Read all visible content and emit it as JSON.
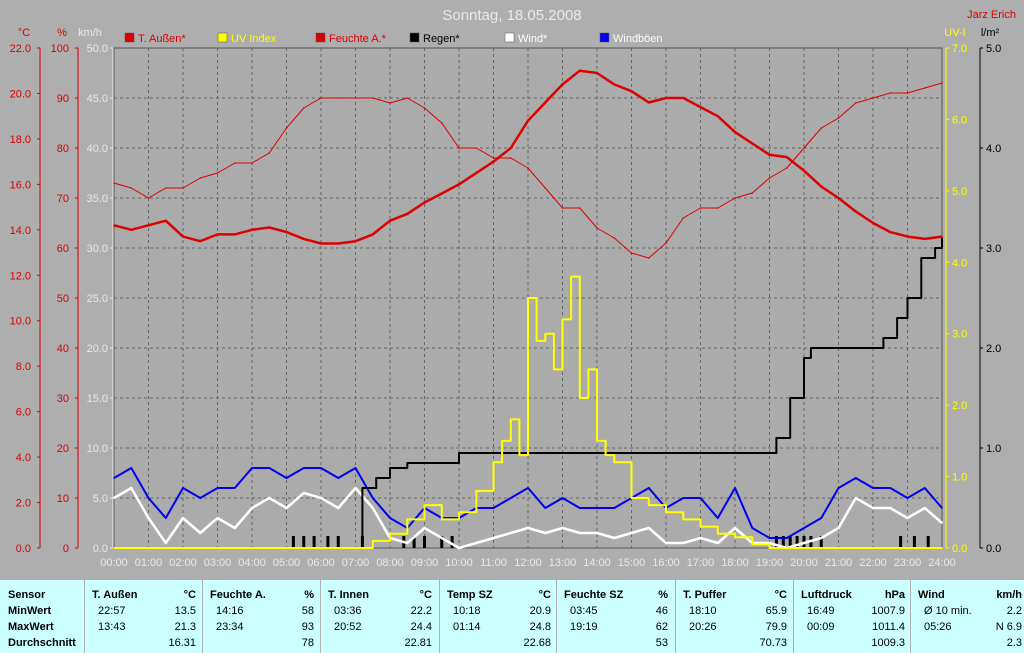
{
  "header": {
    "title": "Sonntag, 18.05.2008",
    "author": "Jarz Erich"
  },
  "colors": {
    "background": "#aeaeae",
    "plot_area": "#ababab",
    "temp": "#dd0000",
    "humidity": "#dd0000",
    "uv": "#ffff00",
    "rain": "#000000",
    "wind": "#ffffff",
    "gust": "#0000ee",
    "stats_bg": "#ccffff"
  },
  "chart_data": {
    "type": "line",
    "x_ticks": [
      "00:00",
      "01:00",
      "02:00",
      "03:00",
      "04:00",
      "05:00",
      "06:00",
      "07:00",
      "08:00",
      "09:00",
      "10:00",
      "11:00",
      "12:00",
      "13:00",
      "14:00",
      "15:00",
      "16:00",
      "17:00",
      "18:00",
      "19:00",
      "20:00",
      "21:00",
      "22:00",
      "23:00",
      "24:00"
    ],
    "axes": {
      "temp": {
        "unit": "°C",
        "range": [
          0,
          22
        ],
        "ticks": [
          "22.0",
          "20.0",
          "18.0",
          "16.0",
          "14.0",
          "12.0",
          "10.0",
          "8.0",
          "6.0",
          "4.0",
          "2.0",
          "0.0"
        ]
      },
      "hum": {
        "unit": "%",
        "range": [
          0,
          100
        ],
        "ticks": [
          "100",
          "90",
          "80",
          "70",
          "60",
          "50",
          "40",
          "30",
          "20",
          "10",
          "0"
        ]
      },
      "wind": {
        "unit": "km/h",
        "range": [
          0,
          50
        ],
        "ticks": [
          "50.0",
          "45.0",
          "40.0",
          "35.0",
          "30.0",
          "25.0",
          "20.0",
          "15.0",
          "10.0",
          "5.0",
          "0.0"
        ]
      },
      "uv": {
        "unit": "UV-I",
        "range": [
          0,
          7
        ],
        "ticks": [
          "7.0",
          "6.0",
          "5.0",
          "4.0",
          "3.0",
          "2.0",
          "1.0",
          "0.0"
        ]
      },
      "rain": {
        "unit": "l/m²",
        "range": [
          0,
          5
        ],
        "ticks": [
          "5.0",
          "4.0",
          "3.0",
          "2.0",
          "1.0",
          "0.0"
        ]
      }
    },
    "legend": [
      {
        "label": "T. Außen*",
        "color": "#dd0000"
      },
      {
        "label": "UV Index",
        "color": "#ffff00"
      },
      {
        "label": "Feuchte A.*",
        "color": "#dd0000"
      },
      {
        "label": "Regen*",
        "color": "#000000"
      },
      {
        "label": "Wind*",
        "color": "#ffffff"
      },
      {
        "label": "Windböen",
        "color": "#0000ee"
      }
    ],
    "series": [
      {
        "name": "T. Außen*",
        "axis": "temp",
        "x": [
          0,
          0.5,
          1,
          1.5,
          2,
          2.5,
          3,
          3.5,
          4,
          4.5,
          5,
          5.5,
          6,
          6.5,
          7,
          7.5,
          8,
          8.5,
          9,
          9.5,
          10,
          10.5,
          11,
          11.5,
          12,
          12.5,
          13,
          13.5,
          14,
          14.5,
          15,
          15.5,
          16,
          16.5,
          17,
          17.5,
          18,
          18.5,
          19,
          19.5,
          20,
          20.5,
          21,
          21.5,
          22,
          22.5,
          23,
          23.5,
          24
        ],
        "y": [
          14.2,
          14.0,
          14.2,
          14.4,
          13.7,
          13.5,
          13.8,
          13.8,
          14.0,
          14.1,
          13.9,
          13.6,
          13.4,
          13.4,
          13.5,
          13.8,
          14.4,
          14.7,
          15.2,
          15.6,
          16.0,
          16.5,
          17.0,
          17.6,
          18.8,
          19.6,
          20.4,
          21.0,
          20.9,
          20.4,
          20.1,
          19.6,
          19.8,
          19.8,
          19.4,
          19.0,
          18.3,
          17.8,
          17.3,
          17.2,
          16.6,
          15.9,
          15.4,
          14.8,
          14.3,
          13.9,
          13.7,
          13.6,
          13.7
        ]
      },
      {
        "name": "Feuchte A.*",
        "axis": "hum",
        "x": [
          0,
          0.5,
          1,
          1.5,
          2,
          2.5,
          3,
          3.5,
          4,
          4.5,
          5,
          5.5,
          6,
          6.5,
          7,
          7.5,
          8,
          8.5,
          9,
          9.5,
          10,
          10.5,
          11,
          11.5,
          12,
          12.5,
          13,
          13.5,
          14,
          14.5,
          15,
          15.5,
          16,
          16.5,
          17,
          17.5,
          18,
          18.5,
          19,
          19.5,
          20,
          20.5,
          21,
          21.5,
          22,
          22.5,
          23,
          23.5,
          24
        ],
        "y": [
          73,
          72,
          70,
          72,
          72,
          74,
          75,
          77,
          77,
          79,
          84,
          88,
          90,
          90,
          90,
          90,
          89,
          90,
          88,
          85,
          80,
          80,
          78,
          78,
          76,
          72,
          68,
          68,
          64,
          62,
          59,
          58,
          61,
          66,
          68,
          68,
          70,
          71,
          74,
          76,
          80,
          84,
          86,
          89,
          90,
          91,
          91,
          92,
          93
        ]
      },
      {
        "name": "UV Index",
        "axis": "uv",
        "x": [
          0,
          7.0,
          7.5,
          8.0,
          8.5,
          9.0,
          9.5,
          10.0,
          10.5,
          11.0,
          11.25,
          11.5,
          11.75,
          12.0,
          12.25,
          12.5,
          12.75,
          13.0,
          13.25,
          13.5,
          13.75,
          14.0,
          14.25,
          14.5,
          15.0,
          15.5,
          16.0,
          16.5,
          17.0,
          17.5,
          18.0,
          18.5,
          19.0,
          24
        ],
        "y": [
          0,
          0,
          0.1,
          0.2,
          0.4,
          0.6,
          0.4,
          0.5,
          0.8,
          1.2,
          1.5,
          1.8,
          1.3,
          3.5,
          2.9,
          3.0,
          2.5,
          3.2,
          3.8,
          2.1,
          2.5,
          1.5,
          1.3,
          1.2,
          0.7,
          0.6,
          0.5,
          0.4,
          0.3,
          0.2,
          0.15,
          0.05,
          0,
          0
        ]
      },
      {
        "name": "Regen*",
        "axis": "rain",
        "x": [
          0,
          6.8,
          7.2,
          7.6,
          8.0,
          8.5,
          9.0,
          9.5,
          10.0,
          17.0,
          19.0,
          19.2,
          19.6,
          20.0,
          20.2,
          20.5,
          21.0,
          21.5,
          22.0,
          22.3,
          22.7,
          23.0,
          23.4,
          23.8,
          24
        ],
        "y": [
          0,
          0,
          0.6,
          0.7,
          0.8,
          0.85,
          0.85,
          0.85,
          0.95,
          0.95,
          0.95,
          1.1,
          1.5,
          1.9,
          2.0,
          2.0,
          2.0,
          2.0,
          2.0,
          2.1,
          2.3,
          2.5,
          2.9,
          3.0,
          3.1
        ]
      },
      {
        "name": "Wind*",
        "axis": "wind",
        "x": [
          0,
          0.5,
          1,
          1.5,
          2,
          2.5,
          3,
          3.5,
          4,
          4.5,
          5,
          5.5,
          6,
          6.5,
          7,
          7.5,
          8,
          8.5,
          9,
          9.5,
          10,
          10.5,
          11,
          11.5,
          12,
          12.5,
          13,
          13.5,
          14,
          14.5,
          15,
          15.5,
          16,
          16.5,
          17,
          17.5,
          18,
          18.5,
          19,
          19.5,
          20,
          20.5,
          21,
          21.5,
          22,
          22.5,
          23,
          23.5,
          24
        ],
        "y": [
          5,
          6,
          3,
          0.5,
          3,
          1.5,
          3,
          2,
          4,
          5,
          4,
          5.5,
          5,
          4,
          6,
          4,
          1,
          0.5,
          2,
          1,
          0,
          0.5,
          1,
          1.5,
          2,
          1.5,
          2,
          1.5,
          1.5,
          1,
          1.5,
          2,
          0.5,
          0.5,
          1,
          0.5,
          2,
          0.5,
          0.5,
          0,
          0.5,
          1,
          2,
          5,
          4,
          4,
          3,
          4,
          2.5
        ]
      },
      {
        "name": "Windböen",
        "axis": "wind",
        "x": [
          0,
          0.5,
          1,
          1.5,
          2,
          2.5,
          3,
          3.5,
          4,
          4.5,
          5,
          5.5,
          6,
          6.5,
          7,
          7.5,
          8,
          8.5,
          9,
          9.5,
          10,
          10.5,
          11,
          11.5,
          12,
          12.5,
          13,
          13.5,
          14,
          14.5,
          15,
          15.5,
          16,
          16.5,
          17,
          17.5,
          18,
          18.5,
          19,
          19.5,
          20,
          20.5,
          21,
          21.5,
          22,
          22.5,
          23,
          23.5,
          24
        ],
        "y": [
          7,
          8,
          5,
          3,
          6,
          5,
          6,
          6,
          8,
          8,
          7,
          8,
          8,
          7,
          8,
          5,
          3,
          2,
          4,
          3,
          3,
          4,
          4,
          5,
          6,
          4,
          5,
          4,
          4,
          4,
          5,
          6,
          4,
          5,
          5,
          3,
          6,
          2,
          1,
          1,
          2,
          3,
          6,
          7,
          6,
          6,
          5,
          6,
          4
        ]
      }
    ],
    "rain_ticks_x": [
      5.2,
      5.5,
      5.8,
      6.2,
      6.5,
      7.2,
      8.4,
      8.7,
      9.0,
      9.5,
      9.8,
      19.2,
      19.4,
      19.6,
      19.8,
      20.0,
      20.2,
      20.5,
      22.8,
      23.2,
      23.6
    ]
  },
  "stats": {
    "row_labels": [
      "Sensor",
      "MinWert",
      "MaxWert",
      "Durchschnitt"
    ],
    "columns": [
      {
        "name": "T. Außen",
        "unit": "°C",
        "min_time": "22:57",
        "min": "13.5",
        "max_time": "13:43",
        "max": "21.3",
        "avg": "16.31"
      },
      {
        "name": "Feuchte A.",
        "unit": "%",
        "min_time": "14:16",
        "min": "58",
        "max_time": "23:34",
        "max": "93",
        "avg": "78"
      },
      {
        "name": "T. Innen",
        "unit": "°C",
        "min_time": "03:36",
        "min": "22.2",
        "max_time": "20:52",
        "max": "24.4",
        "avg": "22.81"
      },
      {
        "name": "Temp SZ",
        "unit": "°C",
        "min_time": "10:18",
        "min": "20.9",
        "max_time": "01:14",
        "max": "24.8",
        "avg": "22.68"
      },
      {
        "name": "Feuchte SZ",
        "unit": "%",
        "min_time": "03:45",
        "min": "46",
        "max_time": "19:19",
        "max": "62",
        "avg": "53"
      },
      {
        "name": "T. Puffer",
        "unit": "°C",
        "min_time": "18:10",
        "min": "65.9",
        "max_time": "20:26",
        "max": "79.9",
        "avg": "70.73"
      },
      {
        "name": "Luftdruck",
        "unit": "hPa",
        "min_time": "16:49",
        "min": "1007.9",
        "max_time": "00:09",
        "max": "1011.4",
        "avg": "1009.3"
      },
      {
        "name": "Wind",
        "unit": "km/h",
        "min_time": "Ø 10 min.",
        "min": "2.2",
        "max_time": "05:26",
        "max": "N 6.9",
        "avg": "2.3"
      }
    ]
  }
}
